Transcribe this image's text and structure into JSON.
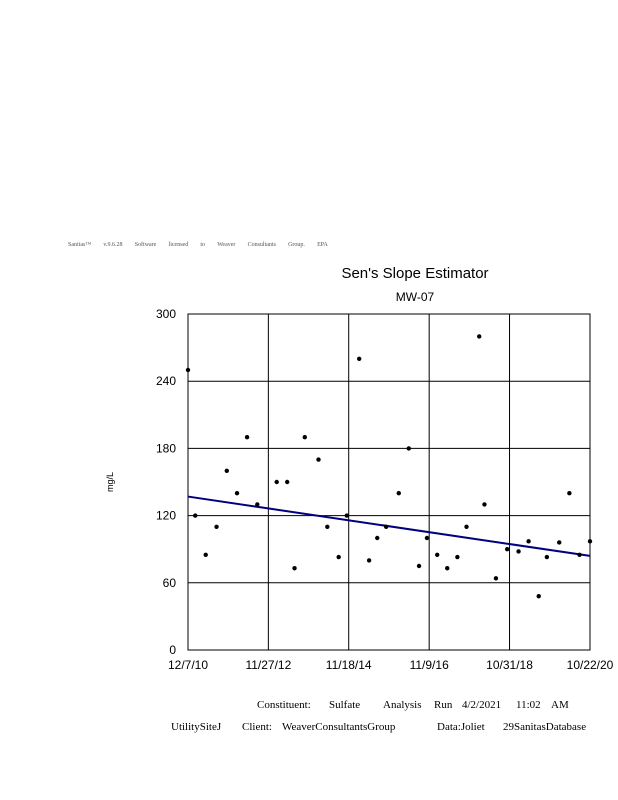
{
  "software_note": [
    "Sanitas™",
    "v.9.6.28",
    "Software",
    "licensed",
    "to",
    "Weaver",
    "Consultants",
    "Group.",
    "EPA"
  ],
  "chart_data": {
    "type": "scatter",
    "title": "Sen's Slope Estimator",
    "subtitle": "MW-07",
    "ylabel": "mg/L",
    "xlabel": "",
    "ylim": [
      0,
      300
    ],
    "yticks": [
      0,
      60,
      120,
      180,
      240,
      300
    ],
    "x_tick_labels": [
      "12/7/10",
      "11/27/12",
      "11/18/14",
      "11/9/16",
      "10/31/18",
      "10/22/20"
    ],
    "x_tick_dates": [
      "2010-12-07",
      "2012-11-27",
      "2014-11-18",
      "2016-11-09",
      "2018-10-31",
      "2020-10-22"
    ],
    "grid": true,
    "point_color": "#000000",
    "trend_color": "#000080",
    "points": [
      {
        "x": "2010-12-07",
        "y": 250
      },
      {
        "x": "2011-02-10",
        "y": 120
      },
      {
        "x": "2011-05-15",
        "y": 85
      },
      {
        "x": "2011-08-20",
        "y": 110
      },
      {
        "x": "2011-11-20",
        "y": 160
      },
      {
        "x": "2012-02-20",
        "y": 140
      },
      {
        "x": "2012-05-20",
        "y": 190
      },
      {
        "x": "2012-08-20",
        "y": 130
      },
      {
        "x": "2013-02-10",
        "y": 150
      },
      {
        "x": "2013-05-15",
        "y": 150
      },
      {
        "x": "2013-07-20",
        "y": 73
      },
      {
        "x": "2013-10-20",
        "y": 190
      },
      {
        "x": "2014-02-20",
        "y": 170
      },
      {
        "x": "2014-05-10",
        "y": 110
      },
      {
        "x": "2014-08-20",
        "y": 83
      },
      {
        "x": "2014-11-01",
        "y": 120
      },
      {
        "x": "2015-02-20",
        "y": 260
      },
      {
        "x": "2015-05-20",
        "y": 80
      },
      {
        "x": "2015-08-01",
        "y": 100
      },
      {
        "x": "2015-10-20",
        "y": 110
      },
      {
        "x": "2016-02-10",
        "y": 140
      },
      {
        "x": "2016-05-10",
        "y": 180
      },
      {
        "x": "2016-08-10",
        "y": 75
      },
      {
        "x": "2016-10-20",
        "y": 100
      },
      {
        "x": "2017-01-20",
        "y": 85
      },
      {
        "x": "2017-04-20",
        "y": 73
      },
      {
        "x": "2017-07-20",
        "y": 83
      },
      {
        "x": "2017-10-10",
        "y": 110
      },
      {
        "x": "2018-02-01",
        "y": 280
      },
      {
        "x": "2018-03-20",
        "y": 130
      },
      {
        "x": "2018-07-01",
        "y": 64
      },
      {
        "x": "2018-10-10",
        "y": 90
      },
      {
        "x": "2019-01-20",
        "y": 88
      },
      {
        "x": "2019-04-20",
        "y": 97
      },
      {
        "x": "2019-07-20",
        "y": 48
      },
      {
        "x": "2019-10-01",
        "y": 83
      },
      {
        "x": "2020-01-20",
        "y": 96
      },
      {
        "x": "2020-04-20",
        "y": 140
      },
      {
        "x": "2020-07-20",
        "y": 85
      },
      {
        "x": "2020-10-22",
        "y": 97
      }
    ],
    "trend_line": [
      {
        "x": "2010-12-07",
        "y": 137
      },
      {
        "x": "2020-10-22",
        "y": 84
      }
    ]
  },
  "footer": {
    "line1": [
      "Constituent:",
      "Sulfate",
      "Analysis",
      "Run",
      "4/2/2021",
      "11:02",
      "AM"
    ],
    "line2": [
      "UtilitySiteJ",
      "Client:",
      "WeaverConsultantsGroup",
      "Data:Joliet",
      "29SanitasDatabase"
    ]
  }
}
